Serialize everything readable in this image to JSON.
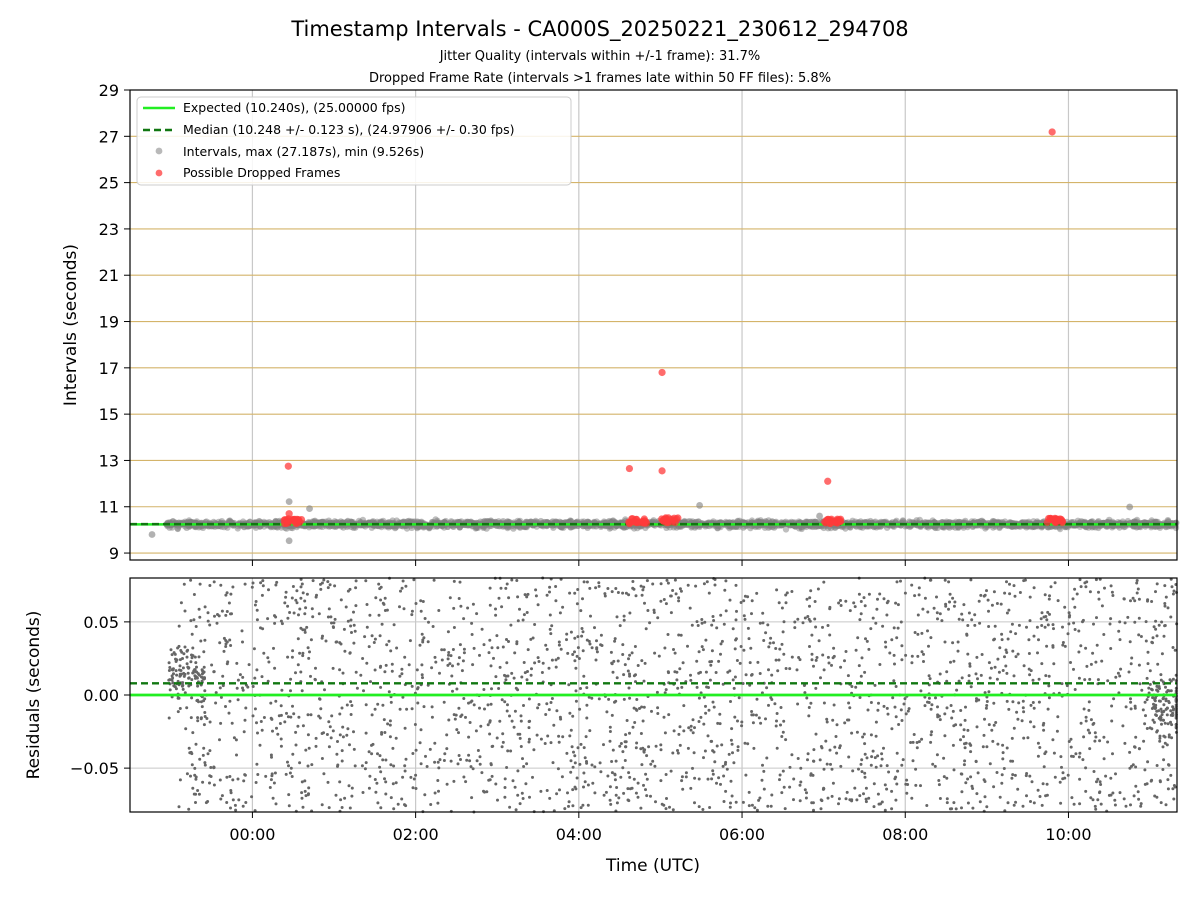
{
  "figure": {
    "title": "Timestamp Intervals - CA000S_20250221_230612_294708",
    "subtitle1": "Jitter Quality (intervals within +/-1 frame): 31.7%",
    "subtitle2": "Dropped Frame Rate (intervals >1 frames late within 50 FF files): 5.8%"
  },
  "colors": {
    "expected": "#22ee22",
    "median": "#117711",
    "intervals": "#7f7f7f",
    "dropped": "#ff3b3b",
    "hgrid": "#d4b46a",
    "vgrid": "#c8c8c8",
    "resid_points": "#666666"
  },
  "chart_data": [
    {
      "type": "scatter",
      "ylabel": "Intervals (seconds)",
      "ylim": [
        8.7,
        29
      ],
      "yticks": [
        9,
        11,
        13,
        15,
        17,
        19,
        21,
        23,
        25,
        27,
        29
      ],
      "xlim_hours": [
        -1.5,
        11.33
      ],
      "grid": true,
      "legend_position": "upper-left",
      "series": [
        {
          "name": "Expected (10.240s), (25.00000 fps)",
          "kind": "hline",
          "y": 10.24
        },
        {
          "name": "Median (10.248 +/- 0.123 s), (24.97906 +/- 0.30 fps)",
          "kind": "hline-dashed",
          "y": 10.248
        },
        {
          "name": "Intervals, max (27.187s), min (9.526s)",
          "kind": "points",
          "max": 27.187,
          "min": 9.526,
          "outliers": [
            [
              -1.23,
              9.8
            ],
            [
              0.45,
              11.22
            ],
            [
              0.45,
              9.53
            ],
            [
              0.7,
              10.92
            ],
            [
              5.48,
              11.06
            ],
            [
              6.95,
              10.6
            ],
            [
              10.75,
              10.99
            ]
          ]
        },
        {
          "name": "Possible Dropped Frames",
          "kind": "points",
          "points": [
            [
              0.44,
              12.75
            ],
            [
              0.45,
              10.7
            ],
            [
              4.62,
              12.65
            ],
            [
              5.02,
              16.8
            ],
            [
              5.02,
              12.55
            ],
            [
              7.05,
              12.1
            ],
            [
              9.8,
              27.187
            ]
          ],
          "clusters": [
            [
              0.5,
              10.38
            ],
            [
              4.72,
              10.38
            ],
            [
              5.12,
              10.42
            ],
            [
              7.12,
              10.38
            ],
            [
              9.85,
              10.42
            ]
          ]
        }
      ]
    },
    {
      "type": "scatter",
      "xlabel": "Time (UTC)",
      "ylabel": "Residuals (seconds)",
      "ylim": [
        -0.08,
        0.08
      ],
      "yticks": [
        0.05,
        0.0,
        -0.05
      ],
      "ytick_labels": [
        "0.05",
        "0.00",
        "−0.05"
      ],
      "xlim_hours": [
        -1.5,
        11.33
      ],
      "xticks_hours": [
        0,
        2,
        4,
        6,
        8,
        10
      ],
      "xtick_labels": [
        "00:00",
        "02:00",
        "04:00",
        "06:00",
        "08:00",
        "10:00"
      ],
      "grid": true,
      "series": [
        {
          "kind": "hline",
          "y": 0.0
        },
        {
          "kind": "hline-dashed",
          "y": 0.008
        },
        {
          "kind": "points",
          "y_range": [
            -0.08,
            0.08
          ],
          "x_range_hours": [
            -0.9,
            11.33
          ]
        }
      ]
    }
  ]
}
